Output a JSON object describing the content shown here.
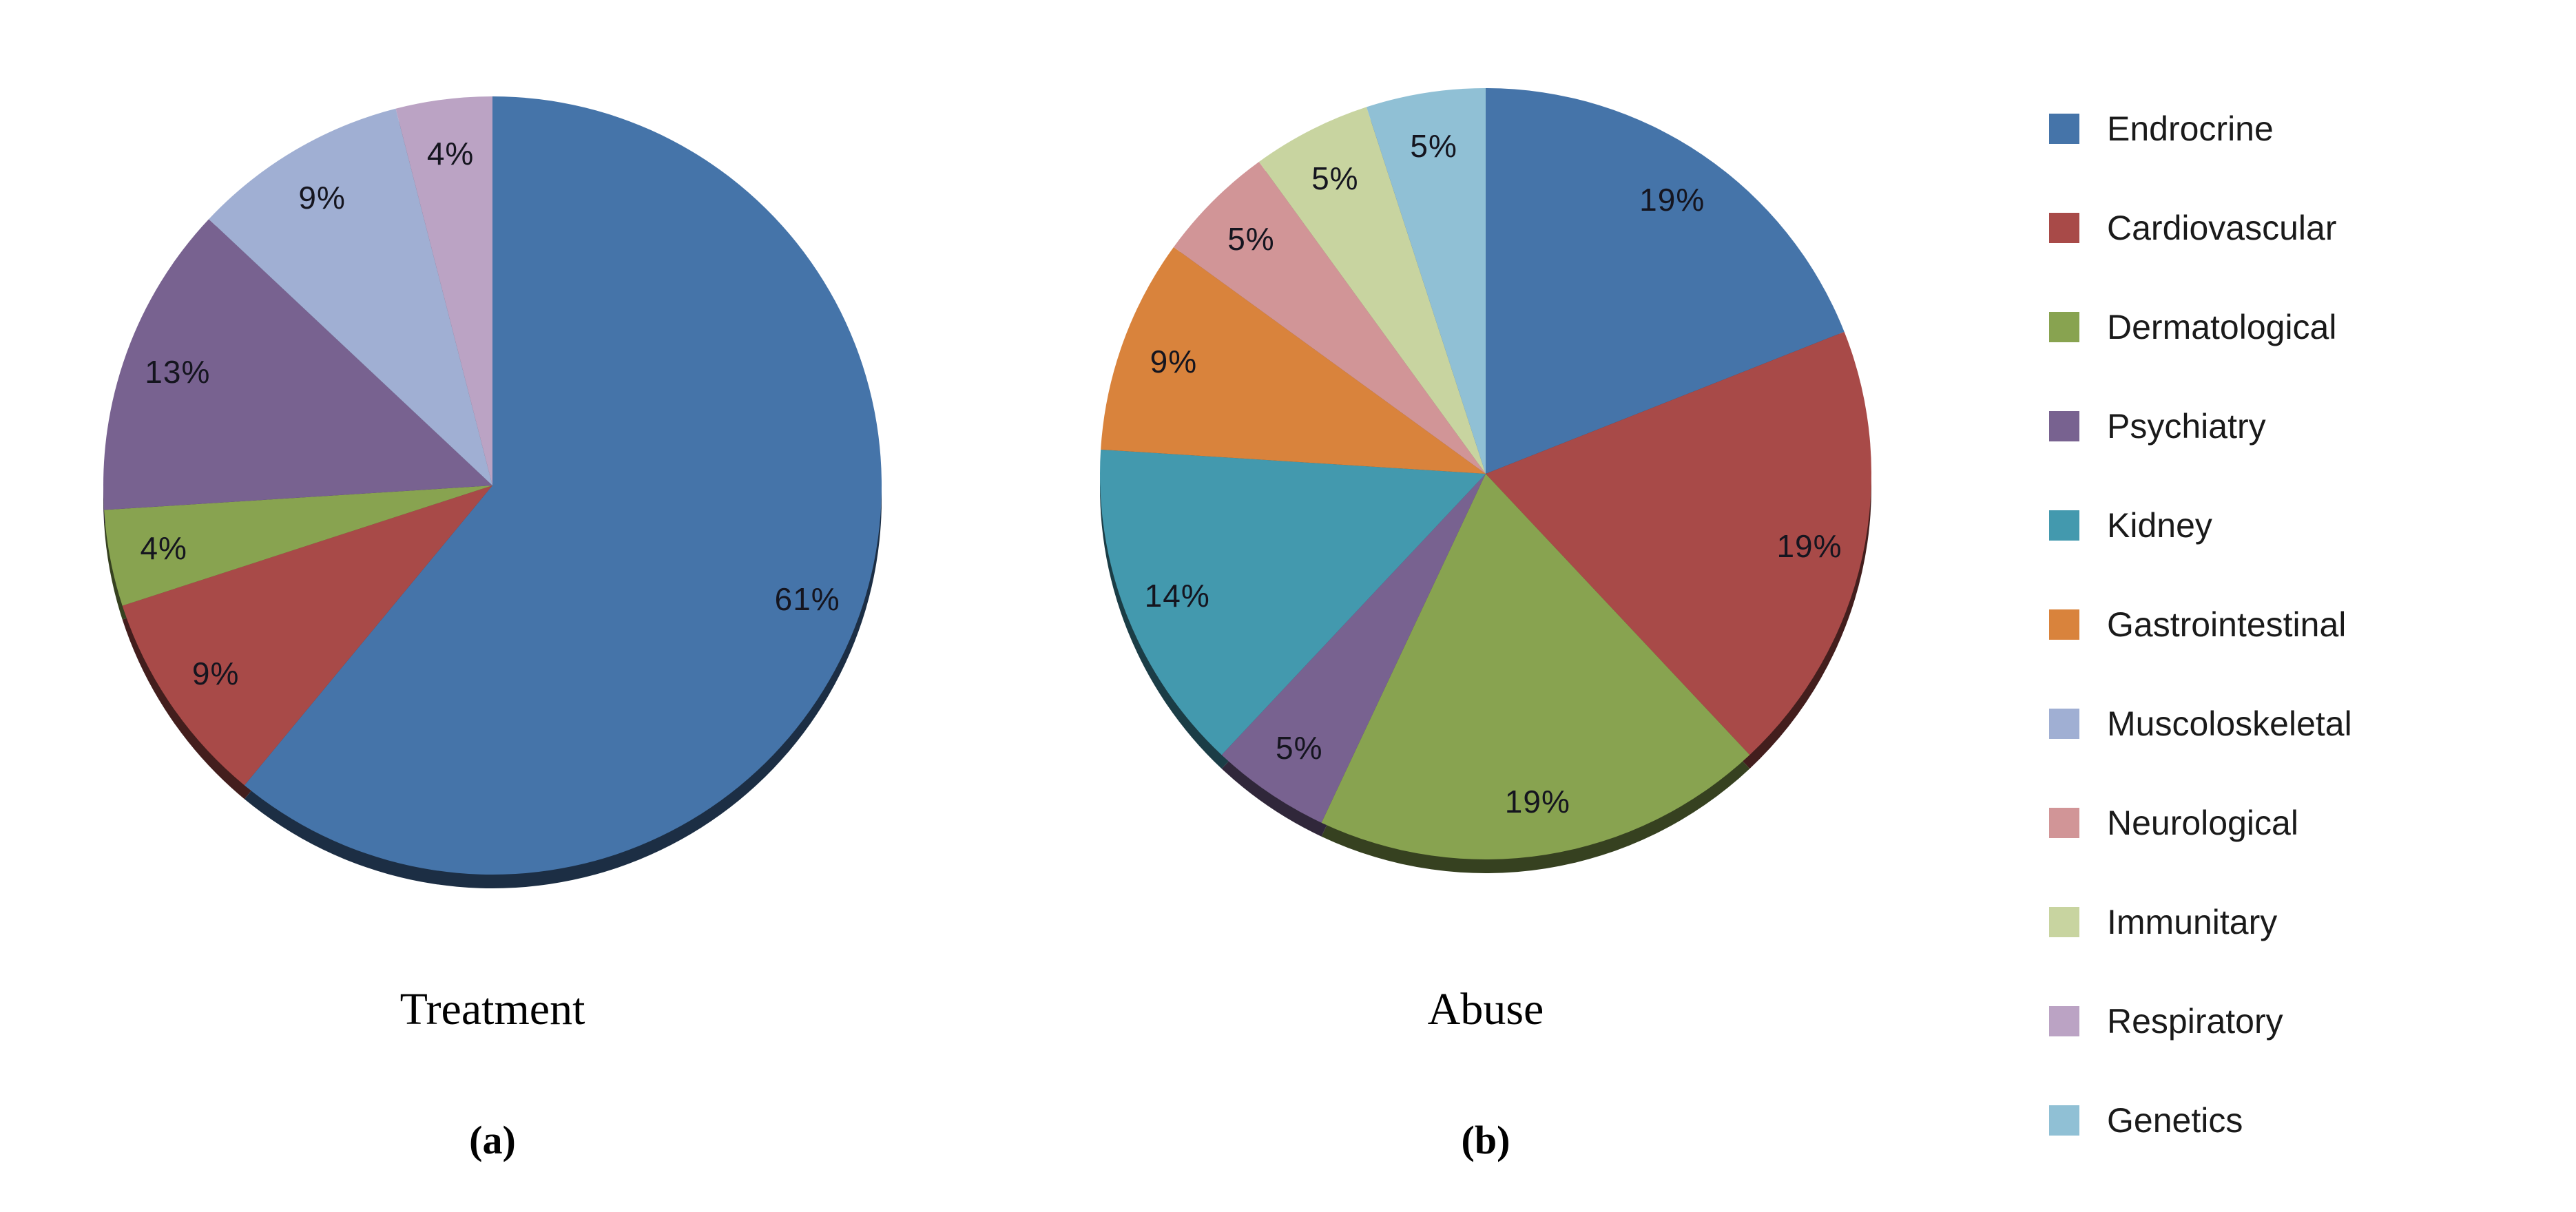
{
  "figure": {
    "background": "#ffffff",
    "label_text_color": "#15151f",
    "caption_text_color": "#010101"
  },
  "legend": {
    "position": "right",
    "items": [
      {
        "label": "Endrocrine",
        "color": "#4574A9"
      },
      {
        "label": "Cardiovascular",
        "color": "#A84A48"
      },
      {
        "label": "Dermatological",
        "color": "#88A350"
      },
      {
        "label": "Psychiatry",
        "color": "#786290"
      },
      {
        "label": "Kidney",
        "color": "#4399AE"
      },
      {
        "label": "Gastrointestinal",
        "color": "#D9833C"
      },
      {
        "label": "Muscoloskeletal",
        "color": "#A0AFD3"
      },
      {
        "label": "Neurological",
        "color": "#D19597"
      },
      {
        "label": "Immunitary",
        "color": "#C8D4A0"
      },
      {
        "label": "Respiratory",
        "color": "#BBA3C4"
      },
      {
        "label": "Genetics",
        "color": "#90C0D5"
      }
    ]
  },
  "chart_data": [
    {
      "type": "pie",
      "title": "Treatment",
      "panel_label": "(a)",
      "unit": "%",
      "start_angle_deg": 0,
      "direction": "clockwise",
      "effect": "3d-bottom-rim",
      "categories": [
        "Endrocrine",
        "Cardiovascular",
        "Dermatological",
        "Psychiatry",
        "Kidney",
        "Gastrointestinal",
        "Muscoloskeletal",
        "Neurological",
        "Immunitary",
        "Respiratory",
        "Genetics"
      ],
      "values": [
        61,
        9,
        4,
        13,
        0,
        0,
        9,
        0,
        0,
        4,
        0
      ]
    },
    {
      "type": "pie",
      "title": "Abuse",
      "panel_label": "(b)",
      "unit": "%",
      "start_angle_deg": 0,
      "direction": "clockwise",
      "effect": "3d-bottom-rim",
      "categories": [
        "Endrocrine",
        "Cardiovascular",
        "Dermatological",
        "Psychiatry",
        "Kidney",
        "Gastrointestinal",
        "Muscoloskeletal",
        "Neurological",
        "Immunitary",
        "Respiratory",
        "Genetics"
      ],
      "values": [
        19,
        19,
        19,
        5,
        14,
        9,
        0,
        5,
        5,
        0,
        5
      ]
    }
  ]
}
